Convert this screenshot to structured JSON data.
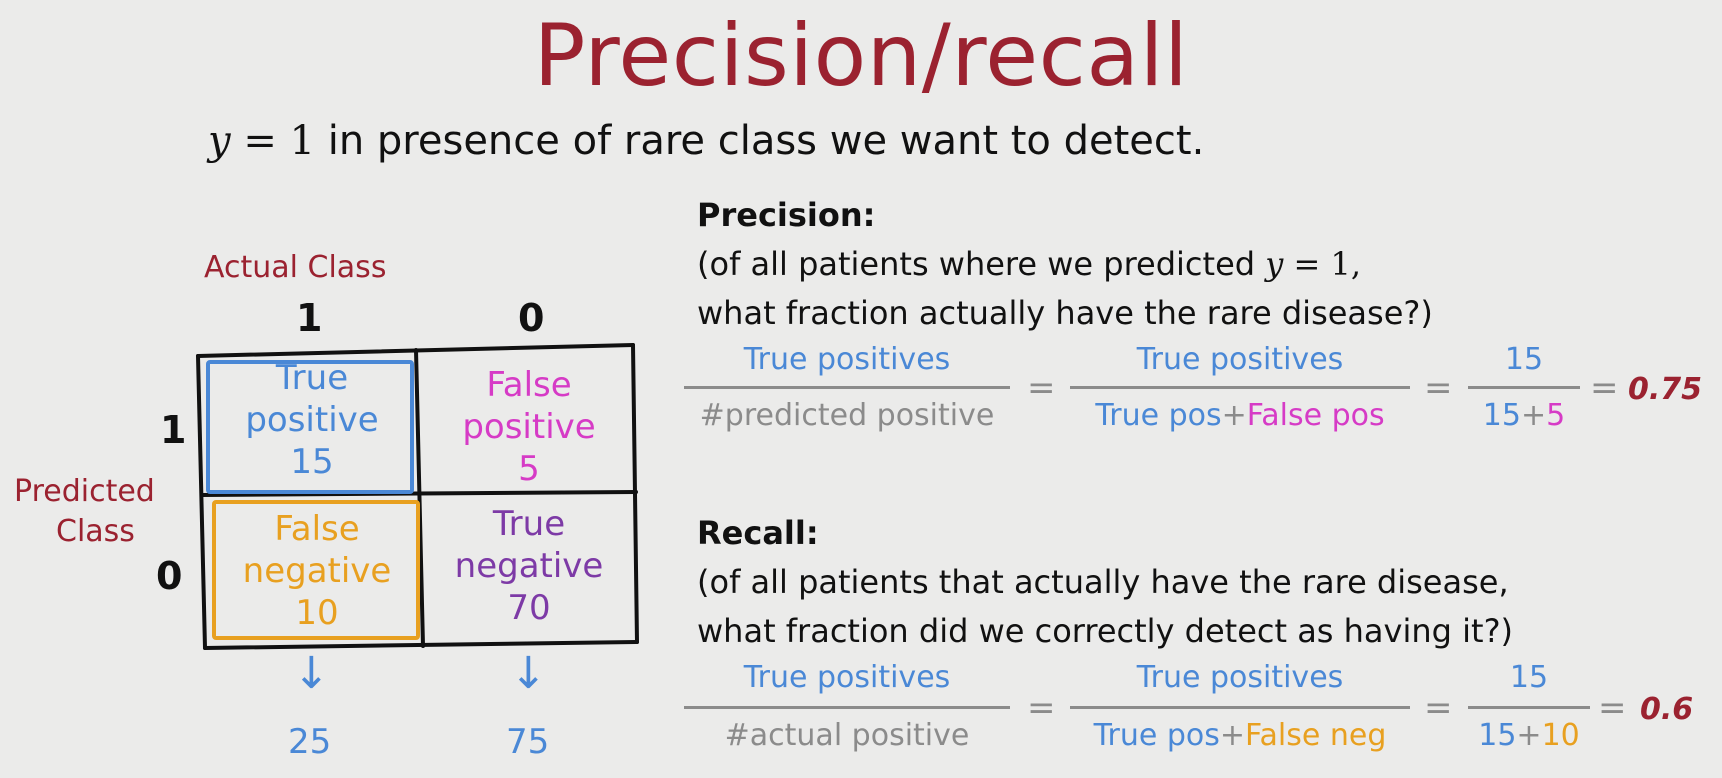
{
  "title": "Precision/recall",
  "subtitle": {
    "var": "y",
    "eq": "=",
    "num": "1",
    "rest": "in presence of rare class we want to detect."
  },
  "matrix": {
    "actual_label": "Actual Class",
    "predicted_label_line1": "Predicted",
    "predicted_label_line2": "Class",
    "col_1": "1",
    "col_0": "0",
    "row_1": "1",
    "row_0": "0",
    "tp": {
      "line1": "True",
      "line2": "positive",
      "value": "15"
    },
    "fp": {
      "line1": "False",
      "line2": "positive",
      "value": "5"
    },
    "fn": {
      "line1": "False",
      "line2": "negative",
      "value": "10"
    },
    "tn": {
      "line1": "True",
      "line2": "negative",
      "value": "70"
    },
    "col_sum_1": "25",
    "col_sum_0": "75",
    "arrow_glyph": "↓",
    "colors": {
      "tp": "#4a88d6",
      "fp": "#d63bc6",
      "fn": "#e8a020",
      "tn": "#7d3aa6"
    }
  },
  "precision": {
    "heading": "Precision:",
    "desc_line1_a": "(of all patients where we predicted",
    "desc_var": "y",
    "desc_eq": "=",
    "desc_num": "1,",
    "desc_line2": "what fraction actually have the rare disease?)",
    "f1_num": "True positives",
    "f1_den": "#predicted positive",
    "f2_num": "True positives",
    "f2_den_a": "True pos",
    "f2_den_plus": "+",
    "f2_den_b": "False pos",
    "f3_num": "15",
    "f3_den_a": "15",
    "f3_den_plus": "+",
    "f3_den_b": "5",
    "equals": "=",
    "result": "0.75"
  },
  "recall": {
    "heading": "Recall:",
    "desc_line1": "(of all patients that actually have the rare disease,",
    "desc_line2": "what fraction did we correctly detect as having it?)",
    "f1_num": "True positives",
    "f1_den": "#actual positive",
    "f2_num": "True positives",
    "f2_den_a": "True pos",
    "f2_den_plus": "+",
    "f2_den_b": "False neg",
    "f3_num": "15",
    "f3_den_a": "15",
    "f3_den_plus": "+",
    "f3_den_b": "10",
    "equals": "=",
    "result": "0.6"
  }
}
